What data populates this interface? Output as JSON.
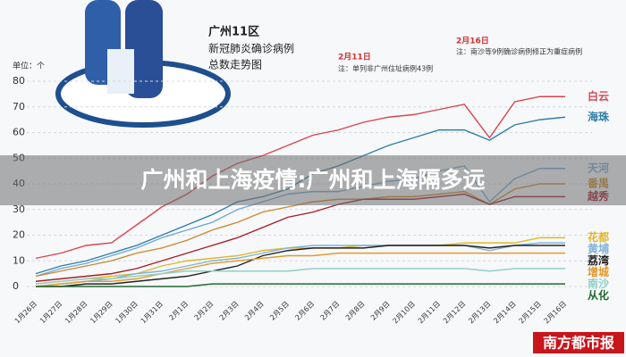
{
  "chart_data": {
    "type": "line",
    "title": "广州11区",
    "subtitle": [
      "新冠肺炎确诊病例",
      "总数走势图"
    ],
    "y_unit": "单位：个",
    "annotations": [
      {
        "date": "2月11日",
        "text": "注：单列非广州住址病例43例"
      },
      {
        "date": "2月16日",
        "text": "注：南沙等9例确诊病例修正为重症病例"
      }
    ],
    "watermark": "南方都市报",
    "categories": [
      "1月26日",
      "1月27日",
      "1月28日",
      "1月29日",
      "1月30日",
      "1月31日",
      "2月1日",
      "2月2日",
      "2月3日",
      "2月4日",
      "2月5日",
      "2月6日",
      "2月7日",
      "2月8日",
      "2月9日",
      "2月10日",
      "2月11日",
      "2月12日",
      "2月13日",
      "2月14日",
      "2月15日",
      "2月16日"
    ],
    "ylim": [
      0,
      80
    ],
    "yticks": [
      0,
      10,
      20,
      30,
      40,
      50,
      60,
      70,
      80
    ],
    "grid": true,
    "series": [
      {
        "name": "白云",
        "color": "#d64550",
        "values": [
          11,
          13,
          16,
          17,
          24,
          31,
          36,
          43,
          48,
          51,
          55,
          59,
          61,
          64,
          66,
          67,
          69,
          71,
          58,
          72,
          74,
          74
        ]
      },
      {
        "name": "海珠",
        "color": "#2f7fa8",
        "values": [
          5,
          8,
          10,
          13,
          16,
          20,
          24,
          28,
          33,
          35,
          38,
          44,
          47,
          51,
          55,
          58,
          61,
          61,
          57,
          63,
          65,
          66
        ]
      },
      {
        "name": "天河",
        "color": "#6fa8d6",
        "values": [
          4,
          7,
          9,
          12,
          15,
          19,
          22,
          25,
          30,
          33,
          36,
          37,
          37,
          39,
          41,
          42,
          45,
          47,
          33,
          42,
          46,
          46
        ]
      },
      {
        "name": "番禺",
        "color": "#c98a2e",
        "values": [
          4,
          6,
          8,
          10,
          13,
          15,
          18,
          22,
          25,
          29,
          31,
          33,
          34,
          34,
          35,
          35,
          36,
          37,
          32,
          38,
          40,
          40
        ]
      },
      {
        "name": "越秀",
        "color": "#a81c2a",
        "values": [
          2,
          3,
          4,
          5,
          7,
          10,
          13,
          16,
          19,
          23,
          27,
          29,
          32,
          34,
          34,
          34,
          35,
          36,
          32,
          35,
          35,
          35
        ]
      },
      {
        "name": "花都",
        "color": "#e2b62a",
        "values": [
          1,
          2,
          3,
          4,
          5,
          8,
          10,
          11,
          12,
          14,
          15,
          15,
          15,
          16,
          16,
          16,
          16,
          17,
          17,
          17,
          19,
          19
        ]
      },
      {
        "name": "黄埔",
        "color": "#7fb3d9",
        "values": [
          0,
          1,
          2,
          3,
          5,
          6,
          8,
          10,
          11,
          13,
          15,
          16,
          16,
          16,
          16,
          16,
          16,
          16,
          14,
          16,
          17,
          17
        ]
      },
      {
        "name": "荔湾",
        "color": "#222222",
        "values": [
          0,
          0,
          1,
          1,
          2,
          3,
          4,
          6,
          8,
          12,
          14,
          15,
          15,
          15,
          16,
          16,
          16,
          16,
          15,
          16,
          16,
          16
        ]
      },
      {
        "name": "增城",
        "color": "#e39a2a",
        "values": [
          0,
          1,
          2,
          2,
          3,
          5,
          7,
          9,
          10,
          11,
          12,
          12,
          13,
          13,
          13,
          13,
          13,
          13,
          13,
          13,
          13,
          13
        ]
      },
      {
        "name": "南沙",
        "color": "#8fd0c8",
        "values": [
          1,
          2,
          3,
          3,
          4,
          5,
          6,
          6,
          6,
          6,
          6,
          7,
          7,
          7,
          7,
          7,
          7,
          7,
          6,
          7,
          7,
          7
        ]
      },
      {
        "name": "从化",
        "color": "#1f6b2e",
        "values": [
          0,
          0,
          0,
          0,
          0,
          0,
          0,
          1,
          1,
          1,
          1,
          1,
          1,
          1,
          1,
          1,
          1,
          1,
          1,
          1,
          1,
          1
        ]
      }
    ]
  },
  "banner": "广州和上海疫情:广州和上海隔多远"
}
